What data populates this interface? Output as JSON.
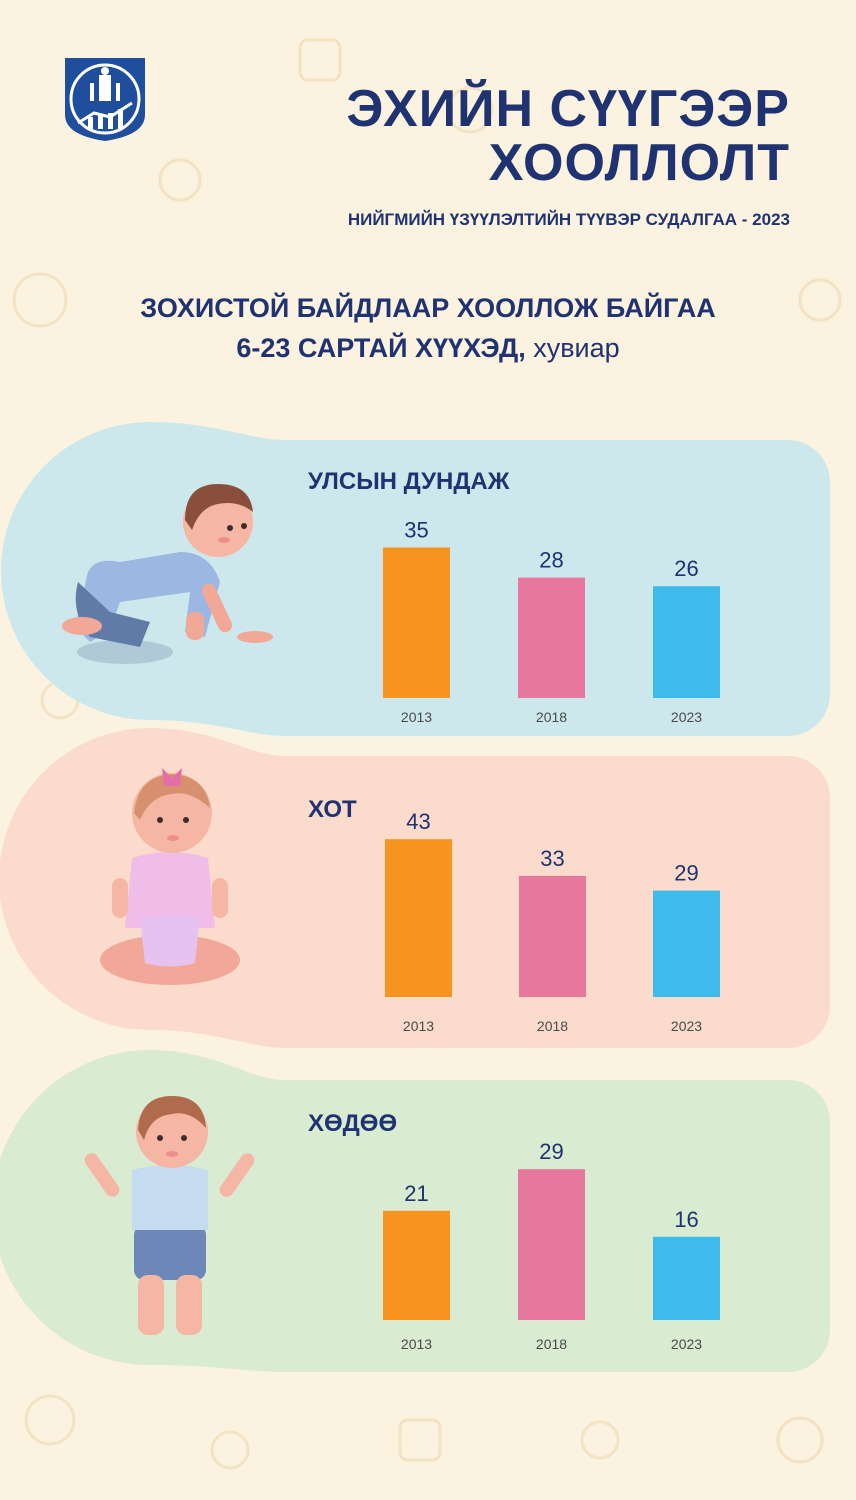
{
  "header": {
    "title_line1": "ЭХИЙН СҮҮГЭЭР",
    "title_line2": "ХООЛЛОЛТ",
    "subtitle": "НИЙГМИЙН ҮЗҮҮЛЭЛТИЙН ТҮҮВЭР СУДАЛГАА - 2023",
    "logo_icon": "mongolia-statistics-emblem-icon"
  },
  "chart_heading": {
    "line1": "ЗОХИСТОЙ БАЙДЛААР ХООЛЛОЖ БАЙГАА",
    "line2_bold": "6-23 САРТАЙ ХҮҮХЭД,",
    "line2_unit": " хувиар"
  },
  "colors": {
    "title": "#1f3271",
    "bar_2013": "#f7941d",
    "bar_2018": "#e8779e",
    "bar_2023": "#3dbbeb",
    "panel_national": "#cde8ec",
    "panel_urban": "#fbdccc",
    "panel_rural": "#d9ebd0"
  },
  "chart_data": [
    {
      "type": "bar",
      "title": "УЛСЫН ДУНДАЖ",
      "categories": [
        "2013",
        "2018",
        "2023"
      ],
      "values": [
        35,
        28,
        26
      ]
    },
    {
      "type": "bar",
      "title": "ХОТ",
      "categories": [
        "2013",
        "2018",
        "2023"
      ],
      "values": [
        43,
        33,
        29
      ]
    },
    {
      "type": "bar",
      "title": "ХӨДӨӨ",
      "categories": [
        "2013",
        "2018",
        "2023"
      ],
      "values": [
        21,
        29,
        16
      ]
    }
  ]
}
